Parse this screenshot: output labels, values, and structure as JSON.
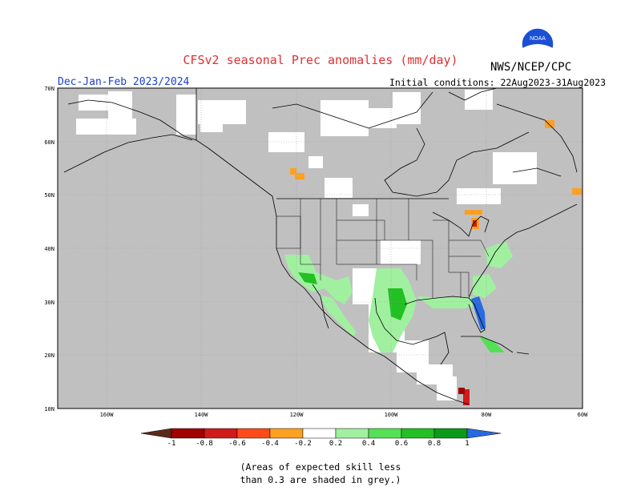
{
  "header": {
    "title": "CFSv2 seasonal Prec anomalies (mm/day)",
    "agency": "NWS/NCEP/CPC",
    "period": "Dec-Jan-Feb 2023/2024",
    "initial_conditions": "Initial conditions: 22Aug2023-31Aug2023",
    "logo_text": "NOAA"
  },
  "map": {
    "lat_labels": [
      "70N",
      "60N",
      "50N",
      "40N",
      "30N",
      "20N",
      "10N"
    ],
    "lon_labels": [
      "160W",
      "140W",
      "120W",
      "100W",
      "80W",
      "60W"
    ],
    "colors": {
      "grey_mask": "#c0c0c0",
      "land_fill": "#ffffff",
      "coast": "#000000"
    }
  },
  "legend": {
    "labels": [
      "-1",
      "-0.8",
      "-0.6",
      "-0.4",
      "-0.2",
      "0.2",
      "0.4",
      "0.6",
      "0.8",
      "1"
    ],
    "colors": [
      "#5a2a1a",
      "#a00000",
      "#d11a1a",
      "#ff4a1a",
      "#ffa020",
      "#ffffff",
      "#a0f0a0",
      "#55e055",
      "#22c022",
      "#0a9a1a",
      "#2a6ae0"
    ]
  },
  "note": {
    "line1": "(Areas of expected skill less",
    "line2": "than 0.3 are shaded in grey.)"
  }
}
